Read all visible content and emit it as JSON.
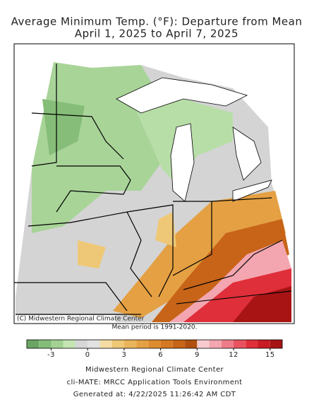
{
  "title": "Average Minimum Temp. (°F): Departure from Mean",
  "subtitle": "April 1, 2025 to April 7, 2025",
  "copyright": "(C) Midwestern Regional Climate Center",
  "mean_period": "Mean period is 1991-2020.",
  "colorbar": {
    "bins": [
      -5,
      -4,
      -3,
      -2,
      -1,
      0,
      1,
      2,
      3,
      4,
      5,
      6,
      7,
      8,
      9,
      10,
      11,
      12,
      13,
      14,
      15,
      16
    ],
    "colors": [
      "#6aa564",
      "#84bd78",
      "#a2d293",
      "#c3e4b3",
      "#d6d6d6",
      "#e2e2e2",
      "#f4dca4",
      "#efc877",
      "#e9b45a",
      "#e4a043",
      "#de8c30",
      "#d47822",
      "#c76418",
      "#b05010",
      "#f7cbcf",
      "#f3a6b0",
      "#ee7c88",
      "#e8525e",
      "#df2f3a",
      "#c61c22",
      "#a81414"
    ],
    "ticks": [
      -3,
      0,
      3,
      6,
      9,
      12,
      15
    ]
  },
  "footer": [
    "Midwestern Regional Climate Center",
    "cli-MATE: MRCC Application Tools Environment",
    "Generated at: 4/22/2025 11:26:42 AM CDT"
  ]
}
